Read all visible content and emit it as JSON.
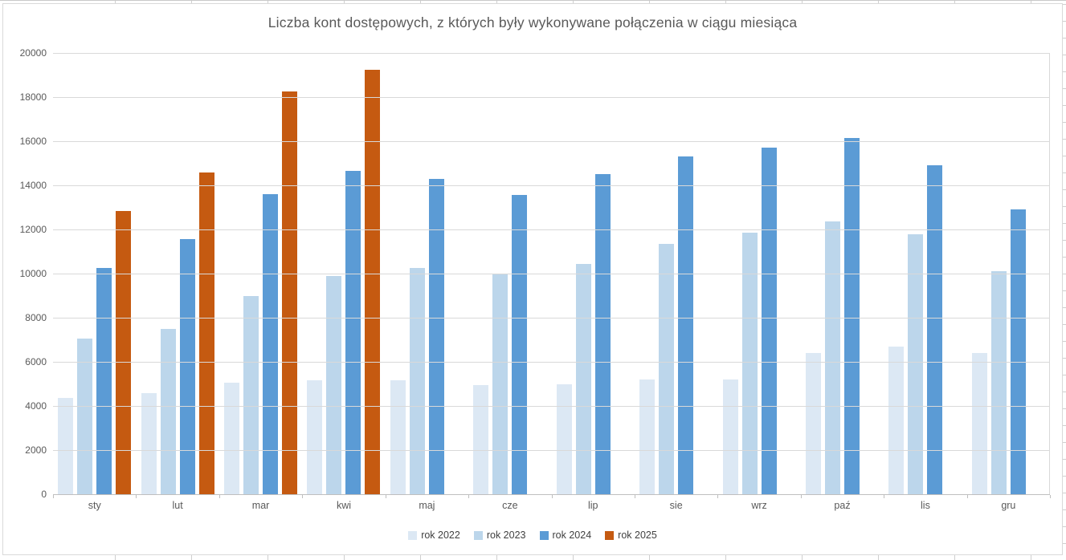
{
  "chart_data": {
    "type": "bar",
    "title": "Liczba kont dostępowych, z których były wykonywane połączenia w ciągu miesiąca",
    "categories": [
      "sty",
      "lut",
      "mar",
      "kwi",
      "maj",
      "cze",
      "lip",
      "sie",
      "wrz",
      "paź",
      "lis",
      "gru"
    ],
    "series": [
      {
        "name": "rok 2022",
        "color": "#DCE8F4",
        "values": [
          4350,
          4600,
          5050,
          5150,
          5150,
          4950,
          5000,
          5200,
          5200,
          6400,
          6700,
          6400
        ]
      },
      {
        "name": "rok 2023",
        "color": "#BCD6EB",
        "values": [
          7050,
          7500,
          9000,
          9900,
          10250,
          9950,
          10450,
          11350,
          11850,
          12350,
          11800,
          10100
        ]
      },
      {
        "name": "rok 2024",
        "color": "#5B9BD5",
        "values": [
          10250,
          11550,
          13600,
          14650,
          14300,
          13550,
          14500,
          15300,
          15700,
          16150,
          14900,
          12900
        ]
      },
      {
        "name": "rok 2025",
        "color": "#C55A11",
        "values": [
          12850,
          14600,
          18250,
          19250,
          null,
          null,
          null,
          null,
          null,
          null,
          null,
          null
        ]
      }
    ],
    "ylim": [
      0,
      20000
    ],
    "yticks": [
      0,
      2000,
      4000,
      6000,
      8000,
      10000,
      12000,
      14000,
      16000,
      18000,
      20000
    ],
    "grid": true,
    "legend_position": "bottom"
  },
  "colors": {
    "title_text": "#595959",
    "axis_text": "#595959",
    "gridline": "#D9D9D9",
    "axis_line": "#BFBFBF",
    "chart_border": "#D9D9D9",
    "background": "#FFFFFF"
  }
}
